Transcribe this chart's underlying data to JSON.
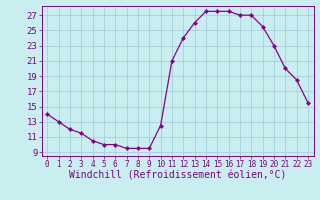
{
  "x": [
    0,
    1,
    2,
    3,
    4,
    5,
    6,
    7,
    8,
    9,
    10,
    11,
    12,
    13,
    14,
    15,
    16,
    17,
    18,
    19,
    20,
    21,
    22,
    23
  ],
  "y": [
    14,
    13,
    12,
    11.5,
    10.5,
    10,
    10,
    9.5,
    9.5,
    9.5,
    12.5,
    21,
    24,
    26,
    27.5,
    27.5,
    27.5,
    27,
    27,
    25.5,
    23,
    20,
    18.5,
    15.5
  ],
  "line_color": "#8B008B",
  "marker_color": "#8B008B",
  "bg_color": "#c8eef0",
  "grid_color": "#a0c8d8",
  "xlabel": "Windchill (Refroidissement éolien,°C)",
  "xlim": [
    -0.5,
    23.5
  ],
  "ylim": [
    8.5,
    28.2
  ],
  "yticks": [
    9,
    11,
    13,
    15,
    17,
    19,
    21,
    23,
    25,
    27
  ],
  "xticks": [
    0,
    1,
    2,
    3,
    4,
    5,
    6,
    7,
    8,
    9,
    10,
    11,
    12,
    13,
    14,
    15,
    16,
    17,
    18,
    19,
    20,
    21,
    22,
    23
  ],
  "tick_color": "#800080",
  "tick_labelsize": 5.5,
  "xlabel_fontsize": 7.0
}
